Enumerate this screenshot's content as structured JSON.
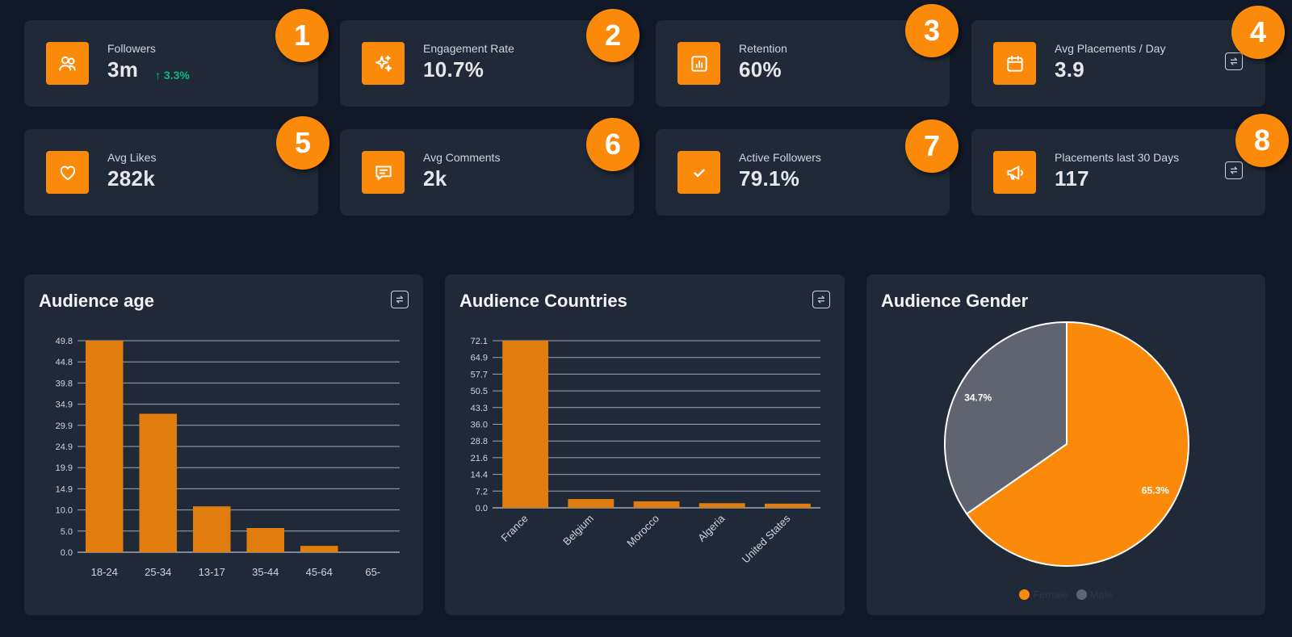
{
  "stats": [
    {
      "label": "Followers",
      "value": "3m",
      "trend": "↑ 3.3%",
      "icon": "users-icon",
      "badge": "1"
    },
    {
      "label": "Engagement Rate",
      "value": "10.7%",
      "icon": "sparkles-icon",
      "badge": "2"
    },
    {
      "label": "Retention",
      "value": "60%",
      "icon": "chart-bar-icon",
      "badge": "3"
    },
    {
      "label": "Avg Placements / Day",
      "value": "3.9",
      "icon": "calendar-icon",
      "badge": "4"
    },
    {
      "label": "Avg Likes",
      "value": "282k",
      "icon": "heart-icon",
      "badge": "5"
    },
    {
      "label": "Avg Comments",
      "value": "2k",
      "icon": "comment-icon",
      "badge": "6"
    },
    {
      "label": "Active Followers",
      "value": "79.1%",
      "icon": "check-icon",
      "badge": "7"
    },
    {
      "label": "Placements last 30 Days",
      "value": "117",
      "icon": "megaphone-icon",
      "badge": "8"
    }
  ],
  "colors": {
    "accent": "#fb8a0a",
    "bar": "#e07d0e",
    "trend_up": "#10b981",
    "male": "#5f6470",
    "card": "#1f2937",
    "background": "#111827"
  },
  "chart_data": [
    {
      "type": "bar",
      "title": "Audience age",
      "categories": [
        "18-24",
        "25-34",
        "13-17",
        "35-44",
        "45-64",
        "65-"
      ],
      "values": [
        49.8,
        32.6,
        10.8,
        5.7,
        1.5,
        0
      ],
      "yticks": [
        "0.0",
        "5.0",
        "10.0",
        "14.9",
        "19.9",
        "24.9",
        "29.9",
        "34.9",
        "39.8",
        "44.8",
        "49.8"
      ],
      "ylim": [
        0,
        49.8
      ],
      "grid": true
    },
    {
      "type": "bar",
      "title": "Audience Countries",
      "categories": [
        "France",
        "Belgium",
        "Morocco",
        "Algeria",
        "United States"
      ],
      "values": [
        72.1,
        3.8,
        2.8,
        2.0,
        1.8
      ],
      "yticks": [
        "0.0",
        "7.2",
        "14.4",
        "21.6",
        "28.8",
        "36.0",
        "43.3",
        "50.5",
        "57.7",
        "64.9",
        "72.1"
      ],
      "ylim": [
        0,
        72.1
      ],
      "grid": true
    },
    {
      "type": "pie",
      "title": "Audience Gender",
      "labels": [
        "Female",
        "Male"
      ],
      "values": [
        65.3,
        34.7
      ],
      "value_labels": [
        "65.3%",
        "34.7%"
      ],
      "colors": [
        "#fb8a0a",
        "#5f6470"
      ],
      "legend_position": "bottom"
    }
  ]
}
